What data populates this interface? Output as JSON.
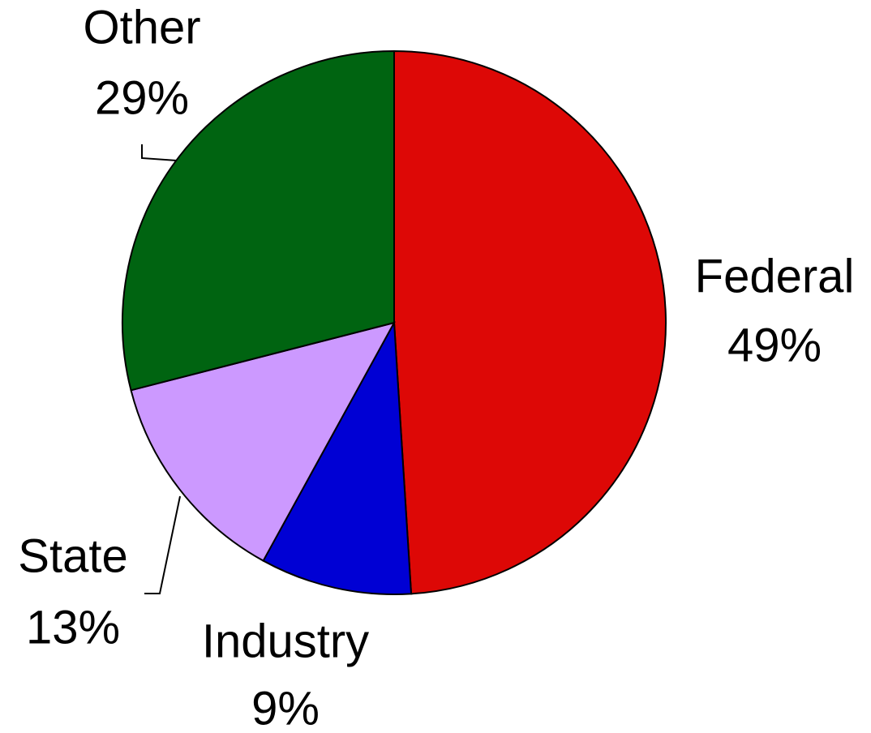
{
  "chart_data": {
    "type": "pie",
    "categories": [
      "Federal",
      "Industry",
      "State",
      "Other"
    ],
    "values": [
      49,
      9,
      13,
      29
    ],
    "value_labels": [
      "49%",
      "9%",
      "13%",
      "29%"
    ],
    "colors": [
      "#dd0806",
      "#0000d4",
      "#cc99ff",
      "#006411"
    ]
  }
}
